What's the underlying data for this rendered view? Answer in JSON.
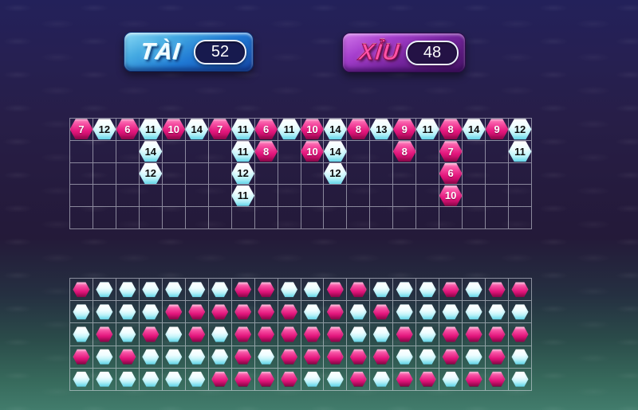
{
  "header": {
    "tai": {
      "label": "TÀI",
      "count": "52"
    },
    "xiu": {
      "label": "XỈU",
      "count": "48"
    }
  },
  "colors": {
    "tai_button": "#2079d4",
    "xiu_button": "#75259e",
    "tai_token": "#bdf3f9",
    "xiu_token": "#e3157c",
    "grid_line": "rgba(222,226,235,0.55)",
    "background_top": "#23215a",
    "background_middle": "#241a39",
    "background_bottom": "#427c6c"
  },
  "main_road": {
    "rows": 5,
    "columns_count": 20,
    "tai_threshold": 11,
    "columns": [
      [
        7
      ],
      [
        12
      ],
      [
        6
      ],
      [
        11,
        14,
        12
      ],
      [
        10
      ],
      [
        14
      ],
      [
        7
      ],
      [
        11,
        11,
        12,
        11
      ],
      [
        6,
        8
      ],
      [
        11
      ],
      [
        10,
        10
      ],
      [
        14,
        14,
        12
      ],
      [
        8
      ],
      [
        13
      ],
      [
        9,
        8
      ],
      [
        11
      ],
      [
        8,
        7,
        6,
        10
      ],
      [
        14
      ],
      [
        9
      ],
      [
        12,
        11
      ]
    ]
  },
  "history_grid": {
    "rows_count": 5,
    "columns_count": 20,
    "legend": {
      "t": "tai-white",
      "x": "xiu-pink"
    },
    "rows": [
      "xttttttxxttxxtttxtxx",
      "ttttxxxxxxtxtxtttttt",
      "txtxtxtxxxxxttxtxxxx",
      "xtxttttxtxxxxxttxtxt",
      "ttttttxxxxttxtxxtxxt"
    ]
  }
}
